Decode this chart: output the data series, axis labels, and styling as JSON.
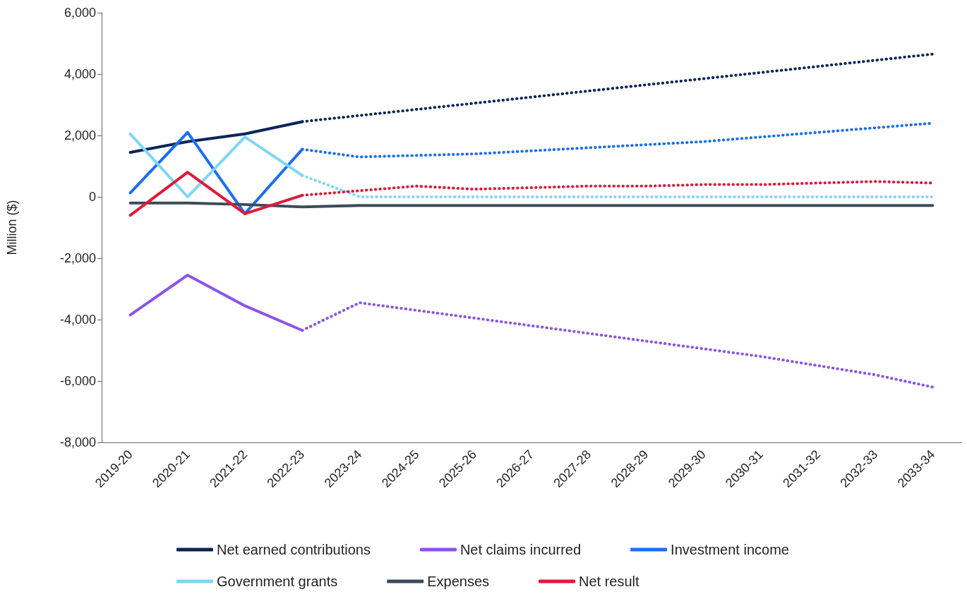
{
  "chart_data": {
    "type": "line",
    "ylabel": "Million ($)",
    "categories": [
      "2019-20",
      "2020-21",
      "2021-22",
      "2022-23",
      "2023-24",
      "2024-25",
      "2025-26",
      "2026-27",
      "2027-28",
      "2028-29",
      "2029-30",
      "2030-31",
      "2031-32",
      "2032-33",
      "2033-34"
    ],
    "ylim": [
      -8000,
      6000
    ],
    "yticks": [
      {
        "value": -8000,
        "label": "-8,000"
      },
      {
        "value": -6000,
        "label": "-6,000"
      },
      {
        "value": -4000,
        "label": "-4,000"
      },
      {
        "value": -2000,
        "label": "-2,000"
      },
      0,
      {
        "value": 2000,
        "label": "2,000"
      },
      {
        "value": 4000,
        "label": "4,000"
      },
      {
        "value": 6000,
        "label": "6,000"
      }
    ],
    "grid": false,
    "legend": "bottom",
    "marker": "none",
    "series": [
      {
        "name": "Net earned contributions",
        "color": "#0b2559",
        "line_style": "solid",
        "values": [
          1450,
          1800,
          2050,
          2450,
          null,
          null,
          null,
          null,
          null,
          null,
          null,
          null,
          null,
          null,
          null
        ]
      },
      {
        "name": "Net claims incurred",
        "color": "#8a55e8",
        "line_style": "solid",
        "values": [
          -3850,
          -2550,
          -3550,
          -4350,
          null,
          null,
          null,
          null,
          null,
          null,
          null,
          null,
          null,
          null,
          null
        ]
      },
      {
        "name": "Investment income",
        "color": "#1a6ff0",
        "line_style": "solid",
        "values": [
          130,
          2100,
          -550,
          1550,
          null,
          null,
          null,
          null,
          null,
          null,
          null,
          null,
          null,
          null,
          null
        ]
      },
      {
        "name": "Government grants",
        "color": "#7fd6f7",
        "line_style": "solid",
        "values": [
          2050,
          0,
          1950,
          700,
          null,
          null,
          null,
          null,
          null,
          null,
          null,
          null,
          null,
          null,
          null
        ]
      },
      {
        "name": "Expenses",
        "color": "#3d4a5a",
        "line_style": "solid",
        "values": [
          -200,
          -200,
          -250,
          -330,
          -280,
          -280,
          -280,
          -280,
          -280,
          -280,
          -280,
          -280,
          -280,
          -280,
          -280
        ]
      },
      {
        "name": "Net result",
        "color": "#e0193a",
        "line_style": "solid",
        "values": [
          -600,
          800,
          -550,
          50,
          null,
          null,
          null,
          null,
          null,
          null,
          null,
          null,
          null,
          null,
          null
        ]
      },
      {
        "color": "#0b2559",
        "line_style": "dotted",
        "values": [
          null,
          null,
          null,
          2450,
          2650,
          2850,
          3050,
          3250,
          3450,
          3650,
          3850,
          4050,
          4250,
          4450,
          4650
        ]
      },
      {
        "color": "#8a55e8",
        "line_style": "dotted",
        "values": [
          null,
          null,
          null,
          -4350,
          -3450,
          -3700,
          -3950,
          -4200,
          -4450,
          -4700,
          -4950,
          -5200,
          -5500,
          -5800,
          -6200
        ]
      },
      {
        "color": "#1a6ff0",
        "line_style": "dotted",
        "values": [
          null,
          null,
          null,
          1550,
          1300,
          1350,
          1400,
          1500,
          1600,
          1700,
          1800,
          1950,
          2100,
          2250,
          2400
        ]
      },
      {
        "color": "#7fd6f7",
        "line_style": "dotted",
        "values": [
          null,
          null,
          null,
          700,
          0,
          0,
          0,
          0,
          0,
          0,
          0,
          0,
          0,
          0,
          0
        ]
      },
      {
        "color": "#e0193a",
        "line_style": "dotted",
        "values": [
          null,
          null,
          null,
          50,
          200,
          350,
          250,
          300,
          350,
          350,
          400,
          400,
          450,
          500,
          450
        ]
      }
    ]
  }
}
